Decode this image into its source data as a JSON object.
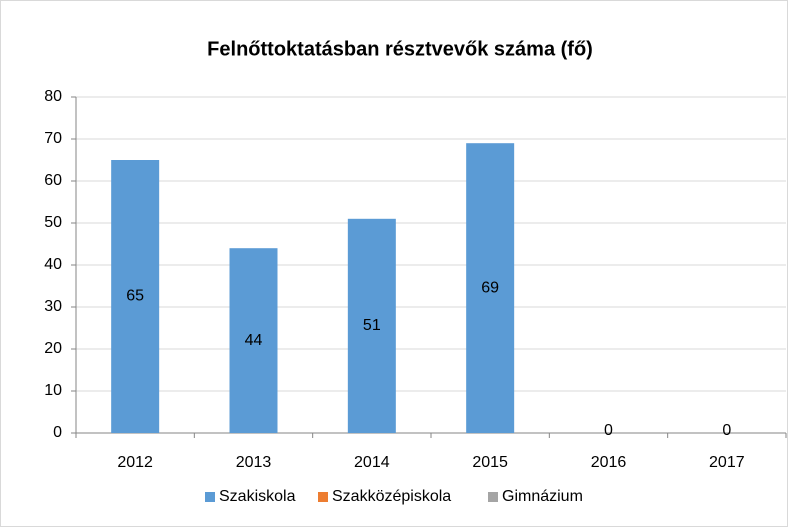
{
  "chart_data": {
    "type": "bar",
    "title": "Felnőttoktatásban résztvevők száma (fő)",
    "categories": [
      "2012",
      "2013",
      "2014",
      "2015",
      "2016",
      "2017"
    ],
    "series": [
      {
        "name": "Szakiskola",
        "color": "#5b9bd5",
        "values": [
          65,
          44,
          51,
          69,
          0,
          0
        ]
      },
      {
        "name": "Szakközépiskola",
        "color": "#ed7d31",
        "values": [
          null,
          null,
          null,
          null,
          null,
          null
        ]
      },
      {
        "name": "Gimnázium",
        "color": "#a5a5a5",
        "values": [
          null,
          null,
          null,
          null,
          null,
          null
        ]
      }
    ],
    "ylim": [
      0,
      80
    ],
    "yticks": [
      0,
      10,
      20,
      30,
      40,
      50,
      60,
      70,
      80
    ],
    "grid": true,
    "legend": "bottom"
  }
}
